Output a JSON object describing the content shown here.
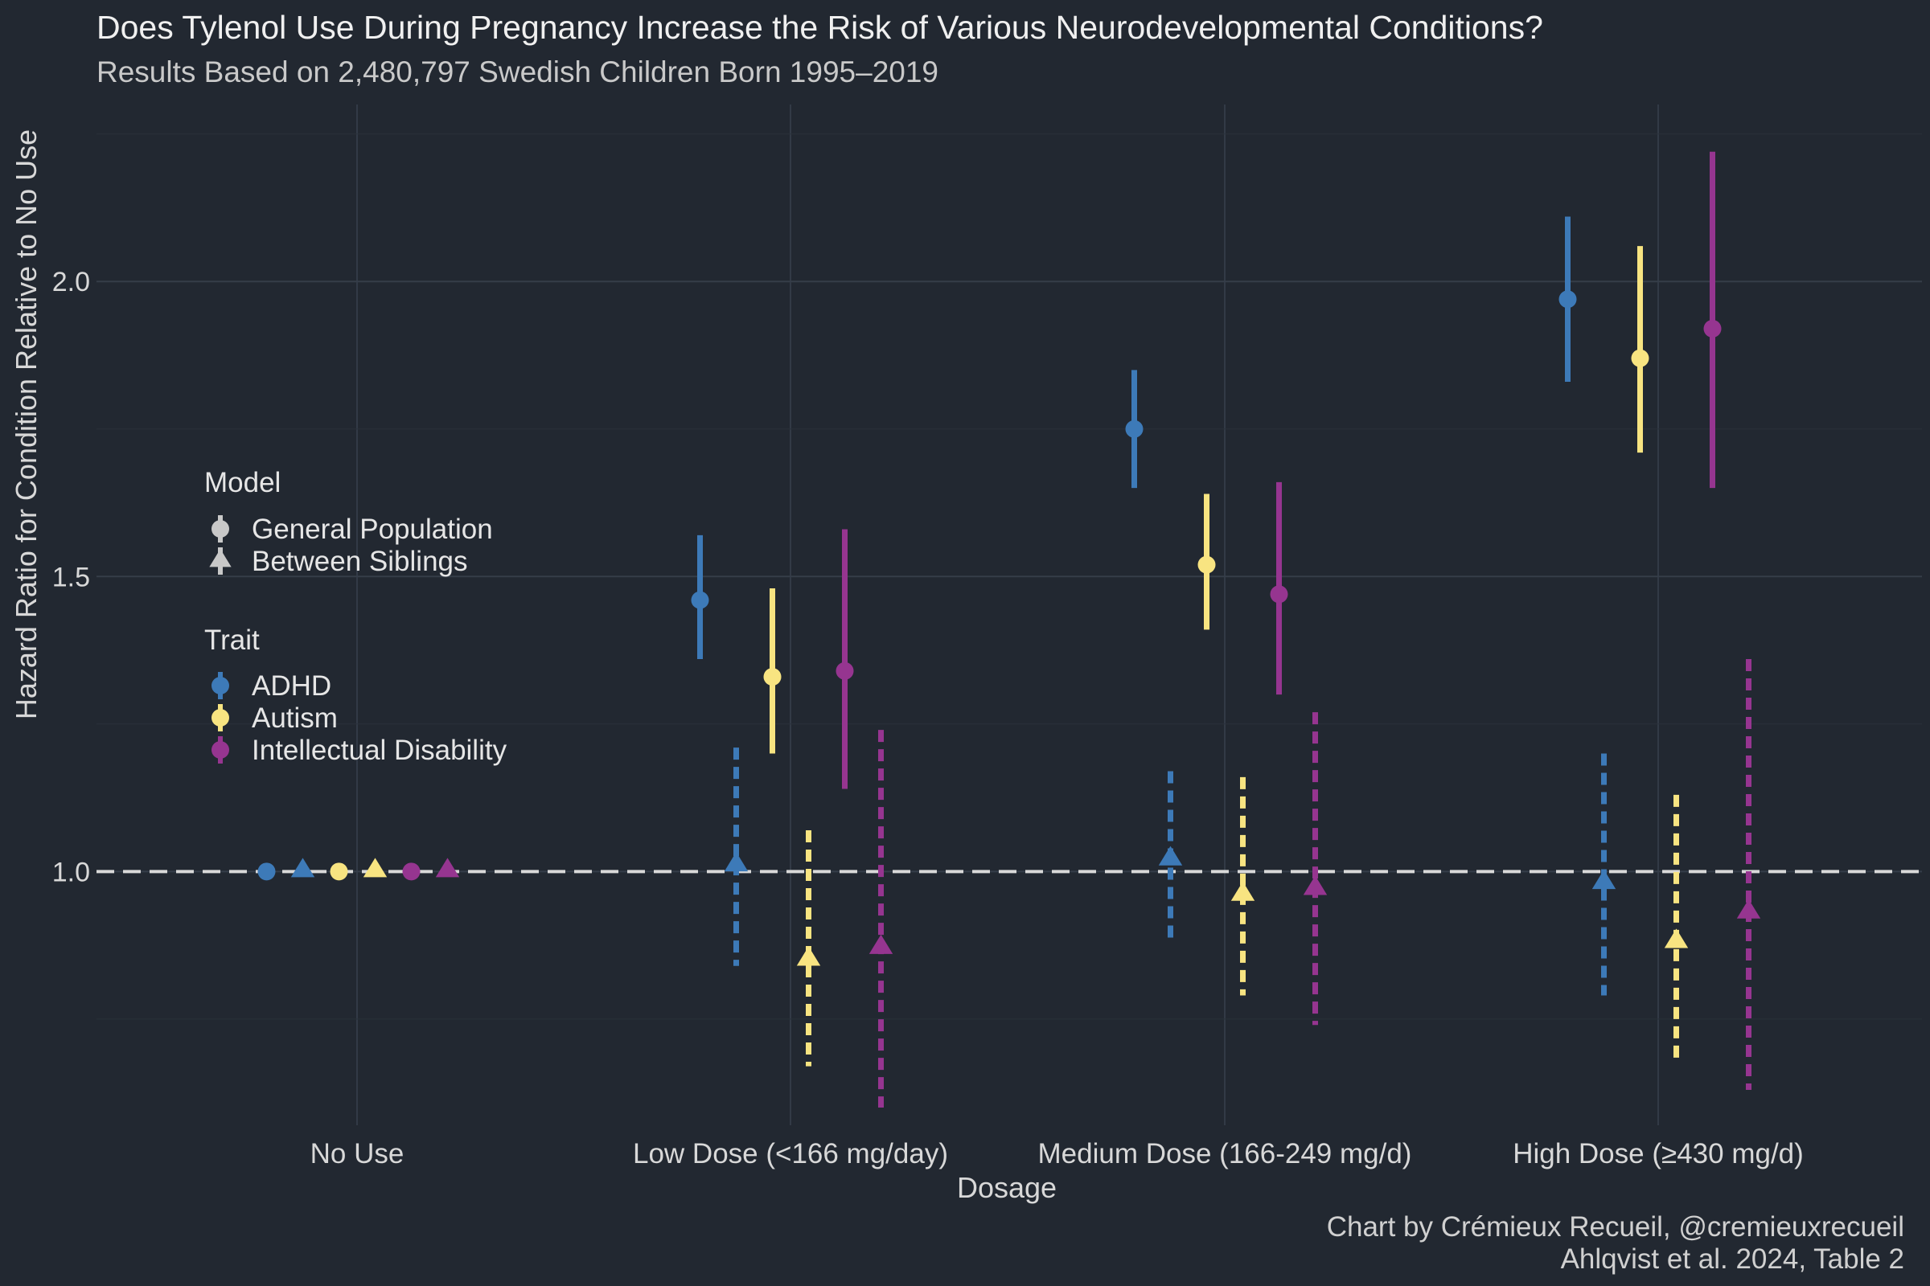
{
  "chart_data": {
    "type": "scatter",
    "title": "Does Tylenol Use During Pregnancy Increase the Risk of Various Neurodevelopmental Conditions?",
    "subtitle": "Results Based on 2,480,797 Swedish Children Born 1995–2019",
    "xlabel": "Dosage",
    "ylabel": "Hazard Ratio for Condition Relative to No Use",
    "categories": [
      "No Use",
      "Low Dose (<166 mg/day)",
      "Medium Dose (166-249 mg/d)",
      "High Dose (≥430 mg/d)"
    ],
    "ylim": [
      0.57,
      2.3
    ],
    "yticks": [
      "1.0",
      "1.5",
      "2.0"
    ],
    "reference_line": 1.0,
    "grid": true,
    "legend": {
      "placement": "left",
      "model_title": "Model",
      "models": [
        {
          "label": "General Population",
          "shape": "circle",
          "line": "solid"
        },
        {
          "label": "Between Siblings",
          "shape": "triangle",
          "line": "dashed"
        }
      ],
      "trait_title": "Trait",
      "traits": [
        {
          "label": "ADHD",
          "color": "#3d7ab8"
        },
        {
          "label": "Autism",
          "color": "#f8e481"
        },
        {
          "label": "Intellectual Disability",
          "color": "#963590"
        }
      ]
    },
    "series": [
      {
        "trait": "ADHD",
        "model": "General Population",
        "estimate": [
          1.0,
          1.46,
          1.75,
          1.97
        ],
        "lower": [
          null,
          1.36,
          1.65,
          1.83
        ],
        "upper": [
          null,
          1.57,
          1.85,
          2.11
        ]
      },
      {
        "trait": "ADHD",
        "model": "Between Siblings",
        "estimate": [
          1.0,
          1.01,
          1.02,
          0.98
        ],
        "lower": [
          null,
          0.84,
          0.88,
          0.79
        ],
        "upper": [
          null,
          1.21,
          1.17,
          1.2
        ]
      },
      {
        "trait": "Autism",
        "model": "General Population",
        "estimate": [
          1.0,
          1.33,
          1.52,
          1.87
        ],
        "lower": [
          null,
          1.2,
          1.41,
          1.71
        ],
        "upper": [
          null,
          1.48,
          1.64,
          2.06
        ]
      },
      {
        "trait": "Autism",
        "model": "Between Siblings",
        "estimate": [
          1.0,
          0.85,
          0.96,
          0.88
        ],
        "lower": [
          null,
          0.67,
          0.79,
          0.68
        ],
        "upper": [
          null,
          1.07,
          1.16,
          1.13
        ]
      },
      {
        "trait": "Intellectual Disability",
        "model": "General Population",
        "estimate": [
          1.0,
          1.34,
          1.47,
          1.92
        ],
        "lower": [
          null,
          1.14,
          1.3,
          1.65
        ],
        "upper": [
          null,
          1.58,
          1.66,
          2.22
        ]
      },
      {
        "trait": "Intellectual Disability",
        "model": "Between Siblings",
        "estimate": [
          1.0,
          0.87,
          0.97,
          0.93
        ],
        "lower": [
          null,
          0.6,
          0.74,
          0.63
        ],
        "upper": [
          null,
          1.24,
          1.27,
          1.36
        ]
      }
    ],
    "caption": [
      "Chart by Crémieux Recueil, @cremieuxrecueil",
      "Ahlqvist et al. 2024, Table 2"
    ]
  }
}
